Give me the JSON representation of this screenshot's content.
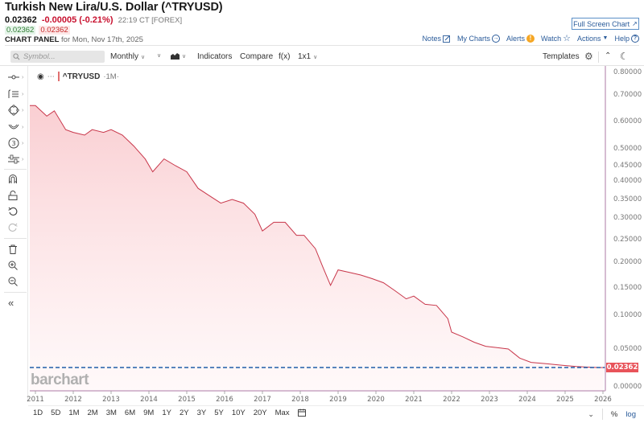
{
  "header": {
    "title": "Turkish New Lira/U.S. Dollar (^TRYUSD)",
    "last": "0.02362",
    "change": "-0.00005 (-0.21%)",
    "time": "22:19 CT [FOREX]",
    "bid": "0.02362",
    "ask": "0.02362",
    "panel_label": "CHART PANEL",
    "panel_date": "for Mon, Nov 17th, 2025",
    "fullscreen_label": "Full Screen Chart",
    "actions": [
      {
        "label": "Notes",
        "icon": "edit-icon"
      },
      {
        "label": "My Charts",
        "icon": "arrow-circle-icon"
      },
      {
        "label": "Alerts",
        "icon": "alert-icon"
      },
      {
        "label": "Watch",
        "icon": "star-icon"
      },
      {
        "label": "Actions",
        "icon": "caret-down-icon"
      },
      {
        "label": "Help",
        "icon": "help-icon"
      }
    ]
  },
  "toolbar": {
    "symbol_placeholder": "Symbol...",
    "interval": "Monthly",
    "indicators": "Indicators",
    "compare": "Compare",
    "fx": "f(x)",
    "layout": "1x1",
    "templates": "Templates"
  },
  "left_tools": [
    {
      "name": "line-tool",
      "glyph": "-o-"
    },
    {
      "name": "fib-tool",
      "glyph": "≣"
    },
    {
      "name": "shape-tool",
      "glyph": "⬡"
    },
    {
      "name": "curve-tool",
      "glyph": "◡"
    },
    {
      "name": "annotation-tool",
      "glyph": "③"
    },
    {
      "name": "pattern-tool",
      "glyph": "☷"
    },
    {
      "name": "magnet-tool",
      "glyph": "∩"
    },
    {
      "name": "lock-tool",
      "glyph": "ὑ2"
    },
    {
      "name": "undo-tool",
      "glyph": "↺"
    },
    {
      "name": "redo-tool",
      "glyph": "↻"
    },
    {
      "name": "delete-tool",
      "glyph": "Ὕ1"
    },
    {
      "name": "zoom-in-tool",
      "glyph": "⊕"
    },
    {
      "name": "zoom-out-tool",
      "glyph": "⊖"
    },
    {
      "name": "collapse-tool",
      "glyph": "«"
    }
  ],
  "legend": {
    "symbol": "^TRYUSD",
    "period": "·1M·"
  },
  "watermark": "barchart",
  "current_price_tag": "0.02362",
  "colors": {
    "line": "#c8364a",
    "fill": "#fbd6d9",
    "price_tag": "#e8535a",
    "dashed_line": "#1f5fa8",
    "axis_border": "#c9a6c4",
    "link": "#2a5b9a",
    "negative": "#c8102e"
  },
  "range_buttons": [
    "1D",
    "5D",
    "1M",
    "2M",
    "3M",
    "6M",
    "9M",
    "1Y",
    "2Y",
    "3Y",
    "5Y",
    "10Y",
    "20Y",
    "Max"
  ],
  "bottom_right": {
    "percent": "%",
    "log": "log"
  },
  "chart_data": {
    "type": "area",
    "title": "Turkish New Lira/U.S. Dollar (^TRYUSD)",
    "xlabel": "",
    "ylabel": "",
    "scale": "log",
    "ylim": [
      0.0,
      0.8
    ],
    "y_ticks": [
      "0.80000",
      "0.70000",
      "0.60000",
      "0.50000",
      "0.45000",
      "0.40000",
      "0.35000",
      "0.30000",
      "0.25000",
      "0.20000",
      "0.15000",
      "0.10000",
      "0.05000",
      "0.00000"
    ],
    "x_ticks": [
      "2011",
      "2012",
      "2013",
      "2014",
      "2015",
      "2016",
      "2017",
      "2018",
      "2019",
      "2020",
      "2021",
      "2022",
      "2023",
      "2024",
      "2025",
      "2026"
    ],
    "grid": false,
    "legend": "^TRYUSD 1M",
    "current_value": 0.02362,
    "x": [
      2011.0,
      2011.3,
      2011.5,
      2011.8,
      2012.0,
      2012.3,
      2012.5,
      2012.8,
      2013.0,
      2013.3,
      2013.6,
      2013.9,
      2014.1,
      2014.4,
      2014.7,
      2015.0,
      2015.3,
      2015.6,
      2015.9,
      2016.2,
      2016.5,
      2016.8,
      2017.0,
      2017.3,
      2017.6,
      2017.9,
      2018.1,
      2018.4,
      2018.6,
      2018.8,
      2019.0,
      2019.3,
      2019.6,
      2019.9,
      2020.2,
      2020.5,
      2020.8,
      2021.0,
      2021.3,
      2021.6,
      2021.9,
      2022.0,
      2022.3,
      2022.6,
      2022.9,
      2023.2,
      2023.5,
      2023.8,
      2024.1,
      2024.5,
      2024.9,
      2025.3,
      2025.7,
      2025.9
    ],
    "values": [
      0.66,
      0.62,
      0.64,
      0.57,
      0.56,
      0.55,
      0.57,
      0.56,
      0.57,
      0.55,
      0.51,
      0.47,
      0.43,
      0.47,
      0.45,
      0.43,
      0.38,
      0.36,
      0.34,
      0.35,
      0.34,
      0.31,
      0.27,
      0.29,
      0.29,
      0.26,
      0.26,
      0.23,
      0.19,
      0.155,
      0.185,
      0.18,
      0.175,
      0.168,
      0.16,
      0.145,
      0.13,
      0.135,
      0.12,
      0.118,
      0.095,
      0.075,
      0.068,
      0.06,
      0.054,
      0.052,
      0.05,
      0.037,
      0.031,
      0.029,
      0.027,
      0.025,
      0.024,
      0.0236
    ]
  }
}
